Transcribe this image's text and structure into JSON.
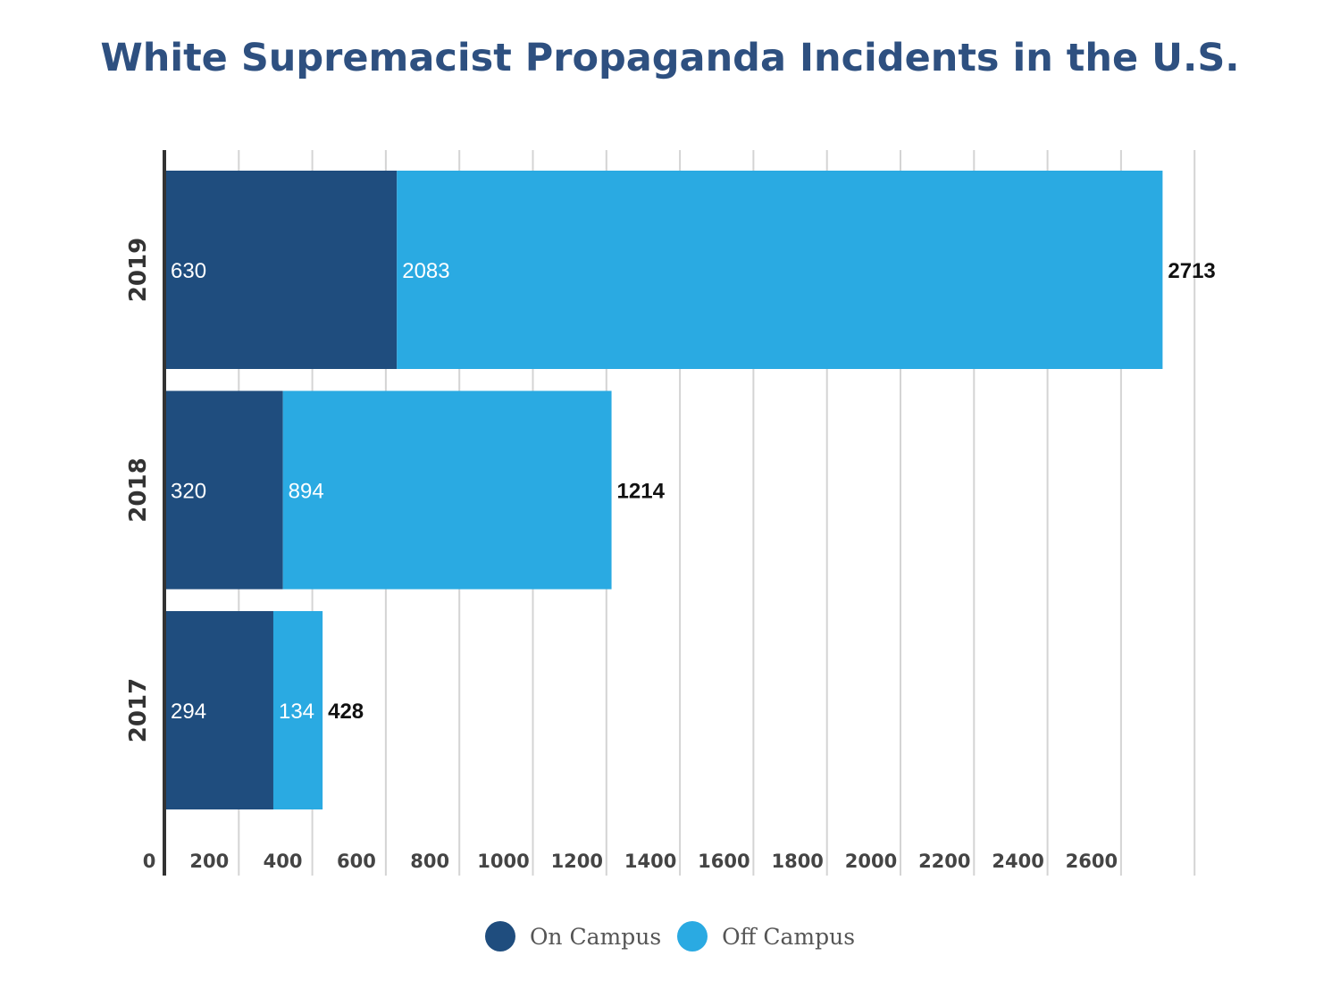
{
  "chart_data": {
    "type": "bar",
    "orientation": "horizontal",
    "stacked": true,
    "title": "White Supremacist Propaganda Incidents in the U.S.",
    "xlabel": "",
    "ylabel": "",
    "categories": [
      "2019",
      "2018",
      "2017"
    ],
    "series": [
      {
        "name": "On Campus",
        "color": "#1f4d7e",
        "values": [
          630,
          320,
          294
        ]
      },
      {
        "name": "Off Campus",
        "color": "#2aaae2",
        "values": [
          2083,
          894,
          134
        ]
      }
    ],
    "totals": [
      2713,
      1214,
      428
    ],
    "x_ticks": [
      "0",
      "200",
      "400",
      "600",
      "800",
      "1000",
      "1200",
      "1400",
      "1600",
      "1800",
      "2000",
      "2200",
      "2400",
      "2600"
    ],
    "xlim": [
      0,
      2713
    ],
    "grid": "vertical",
    "legend_position": "bottom"
  }
}
